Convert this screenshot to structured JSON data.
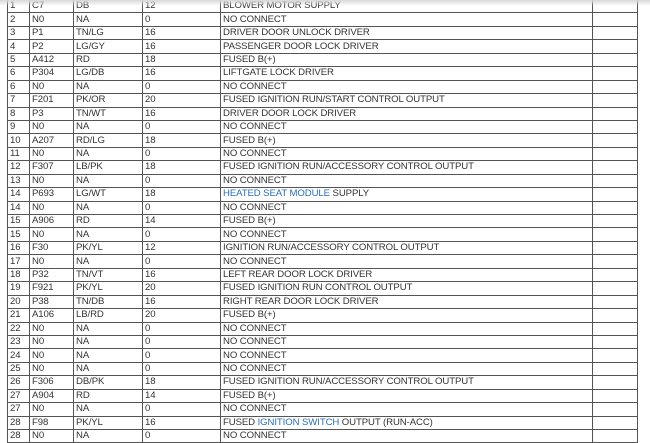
{
  "rows": [
    {
      "pin": "1",
      "circuit": "C7",
      "color": "DB",
      "gauge": "12",
      "function": "BLOWER MOTOR SUPPLY"
    },
    {
      "pin": "2",
      "circuit": "N0",
      "color": "NA",
      "gauge": "0",
      "function": "NO CONNECT"
    },
    {
      "pin": "3",
      "circuit": "P1",
      "color": "TN/LG",
      "gauge": "16",
      "function": "DRIVER DOOR UNLOCK DRIVER"
    },
    {
      "pin": "4",
      "circuit": "P2",
      "color": "LG/GY",
      "gauge": "16",
      "function": "PASSENGER DOOR LOCK DRIVER"
    },
    {
      "pin": "5",
      "circuit": "A412",
      "color": "RD",
      "gauge": "18",
      "function": "FUSED B(+)"
    },
    {
      "pin": "6",
      "circuit": "P304",
      "color": "LG/DB",
      "gauge": "16",
      "function": "LIFTGATE LOCK DRIVER"
    },
    {
      "pin": "6",
      "circuit": "N0",
      "color": "NA",
      "gauge": "0",
      "function": "NO CONNECT"
    },
    {
      "pin": "7",
      "circuit": "F201",
      "color": "PK/OR",
      "gauge": "20",
      "function": "FUSED IGNITION RUN/START CONTROL OUTPUT"
    },
    {
      "pin": "8",
      "circuit": "P3",
      "color": "TN/WT",
      "gauge": "16",
      "function": "DRIVER DOOR LOCK DRIVER"
    },
    {
      "pin": "9",
      "circuit": "N0",
      "color": "NA",
      "gauge": "0",
      "function": "NO CONNECT"
    },
    {
      "pin": "10",
      "circuit": "A207",
      "color": "RD/LG",
      "gauge": "18",
      "function": "FUSED B(+)"
    },
    {
      "pin": "11",
      "circuit": "N0",
      "color": "NA",
      "gauge": "0",
      "function": "NO CONNECT"
    },
    {
      "pin": "12",
      "circuit": "F307",
      "color": "LB/PK",
      "gauge": "18",
      "function": "FUSED IGNITION RUN/ACCESSORY CONTROL OUTPUT"
    },
    {
      "pin": "13",
      "circuit": "N0",
      "color": "NA",
      "gauge": "0",
      "function": "NO CONNECT"
    },
    {
      "pin": "14",
      "circuit": "P693",
      "color": "LG/WT",
      "gauge": "18",
      "function_link": "HEATED SEAT MODULE",
      "function": " SUPPLY"
    },
    {
      "pin": "14",
      "circuit": "N0",
      "color": "NA",
      "gauge": "0",
      "function": "NO CONNECT"
    },
    {
      "pin": "15",
      "circuit": "A906",
      "color": "RD",
      "gauge": "14",
      "function": "FUSED B(+)"
    },
    {
      "pin": "15",
      "circuit": "N0",
      "color": "NA",
      "gauge": "0",
      "function": "NO CONNECT"
    },
    {
      "pin": "16",
      "circuit": "F30",
      "color": "PK/YL",
      "gauge": "12",
      "function": "IGNITION RUN/ACCESSORY CONTROL OUTPUT"
    },
    {
      "pin": "17",
      "circuit": "N0",
      "color": "NA",
      "gauge": "0",
      "function": "NO CONNECT"
    },
    {
      "pin": "18",
      "circuit": "P32",
      "color": "TN/VT",
      "gauge": "16",
      "function": "LEFT REAR DOOR LOCK DRIVER"
    },
    {
      "pin": "19",
      "circuit": "F921",
      "color": "PK/YL",
      "gauge": "20",
      "function": "FUSED IGNITION RUN CONTROL OUTPUT"
    },
    {
      "pin": "20",
      "circuit": "P38",
      "color": "TN/DB",
      "gauge": "16",
      "function": "RIGHT REAR DOOR LOCK DRIVER"
    },
    {
      "pin": "21",
      "circuit": "A106",
      "color": "LB/RD",
      "gauge": "20",
      "function": "FUSED B(+)"
    },
    {
      "pin": "22",
      "circuit": "N0",
      "color": "NA",
      "gauge": "0",
      "function": "NO CONNECT"
    },
    {
      "pin": "23",
      "circuit": "N0",
      "color": "NA",
      "gauge": "0",
      "function": "NO CONNECT"
    },
    {
      "pin": "24",
      "circuit": "N0",
      "color": "NA",
      "gauge": "0",
      "function": "NO CONNECT"
    },
    {
      "pin": "25",
      "circuit": "N0",
      "color": "NA",
      "gauge": "0",
      "function": "NO CONNECT"
    },
    {
      "pin": "26",
      "circuit": "F306",
      "color": "DB/PK",
      "gauge": "18",
      "function": "FUSED IGNITION RUN/ACCESSORY CONTROL OUTPUT"
    },
    {
      "pin": "27",
      "circuit": "A904",
      "color": "RD",
      "gauge": "14",
      "function": "FUSED B(+)"
    },
    {
      "pin": "27",
      "circuit": "N0",
      "color": "NA",
      "gauge": "0",
      "function": "NO CONNECT"
    },
    {
      "pin": "28",
      "circuit": "F98",
      "color": "PK/YL",
      "gauge": "16",
      "function_pre": "FUSED ",
      "function_link": "IGNITION SWITCH",
      "function": " OUTPUT (RUN-ACC)"
    },
    {
      "pin": "28",
      "circuit": "N0",
      "color": "NA",
      "gauge": "0",
      "function": "NO CONNECT"
    }
  ],
  "link_color": "#2a6ebb"
}
